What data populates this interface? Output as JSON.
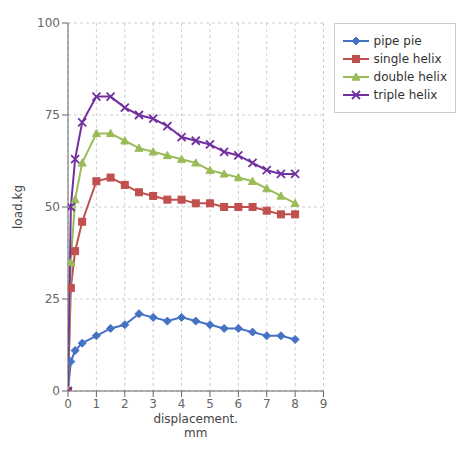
{
  "chart_data": {
    "type": "line",
    "xlabel": "displacement.\nmm",
    "ylabel": "load.kg",
    "x": [
      0,
      0.1,
      0.25,
      0.5,
      1.0,
      1.5,
      2.0,
      2.5,
      3.0,
      3.5,
      4.0,
      4.5,
      5.0,
      5.5,
      6.0,
      6.5,
      7.0,
      7.5,
      8.0
    ],
    "series": [
      {
        "name": "pipe pie",
        "color": "#4472C4",
        "marker": "diamond",
        "values": [
          0,
          8,
          11,
          13,
          15,
          17,
          18,
          21,
          20,
          19,
          20,
          19,
          18,
          17,
          17,
          16,
          15,
          15,
          14
        ]
      },
      {
        "name": "single helix",
        "color": "#C0504D",
        "marker": "square",
        "values": [
          0,
          28,
          38,
          46,
          57,
          58,
          56,
          54,
          53,
          52,
          52,
          51,
          51,
          50,
          50,
          50,
          49,
          48,
          48
        ]
      },
      {
        "name": "double helix",
        "color": "#9BBB59",
        "marker": "triangle",
        "values": [
          0,
          35,
          52,
          62,
          70,
          70,
          68,
          66,
          65,
          64,
          63,
          62,
          60,
          59,
          58,
          57,
          55,
          53,
          51
        ]
      },
      {
        "name": "triple helix",
        "color": "#7030A0",
        "marker": "x",
        "values": [
          0,
          50,
          63,
          73,
          80,
          80,
          77,
          75,
          74,
          72,
          69,
          68,
          67,
          65,
          64,
          62,
          60,
          59,
          59
        ]
      }
    ],
    "xlim": [
      0,
      9
    ],
    "xticks": [
      0,
      1,
      2,
      3,
      4,
      5,
      6,
      7,
      8,
      9
    ],
    "ylim": [
      0,
      100
    ],
    "yticks": [
      0,
      25,
      50,
      75,
      100
    ],
    "grid": true,
    "legend": "right"
  }
}
